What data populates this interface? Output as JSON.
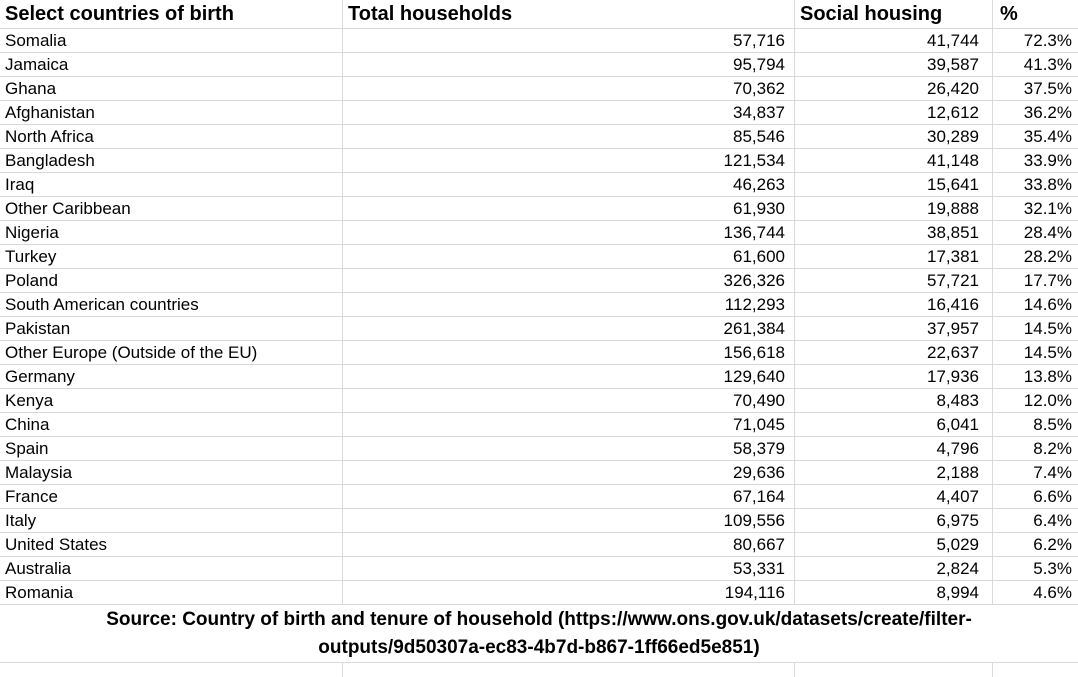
{
  "table": {
    "columns": [
      {
        "label": "Select countries of birth"
      },
      {
        "label": "Total households"
      },
      {
        "label": "Social housing"
      },
      {
        "label": "%"
      }
    ],
    "rows": [
      {
        "country": "Somalia",
        "total_households": "57,716",
        "social_housing": "41,744",
        "percent": "72.3%"
      },
      {
        "country": "Jamaica",
        "total_households": "95,794",
        "social_housing": "39,587",
        "percent": "41.3%"
      },
      {
        "country": "Ghana",
        "total_households": "70,362",
        "social_housing": "26,420",
        "percent": "37.5%"
      },
      {
        "country": "Afghanistan",
        "total_households": "34,837",
        "social_housing": "12,612",
        "percent": "36.2%"
      },
      {
        "country": "North Africa",
        "total_households": "85,546",
        "social_housing": "30,289",
        "percent": "35.4%"
      },
      {
        "country": "Bangladesh",
        "total_households": "121,534",
        "social_housing": "41,148",
        "percent": "33.9%"
      },
      {
        "country": "Iraq",
        "total_households": "46,263",
        "social_housing": "15,641",
        "percent": "33.8%"
      },
      {
        "country": "Other Caribbean",
        "total_households": "61,930",
        "social_housing": "19,888",
        "percent": "32.1%"
      },
      {
        "country": "Nigeria",
        "total_households": "136,744",
        "social_housing": "38,851",
        "percent": "28.4%"
      },
      {
        "country": "Turkey",
        "total_households": "61,600",
        "social_housing": "17,381",
        "percent": "28.2%"
      },
      {
        "country": "Poland",
        "total_households": "326,326",
        "social_housing": "57,721",
        "percent": "17.7%"
      },
      {
        "country": "South American countries",
        "total_households": "112,293",
        "social_housing": "16,416",
        "percent": "14.6%"
      },
      {
        "country": "Pakistan",
        "total_households": "261,384",
        "social_housing": "37,957",
        "percent": "14.5%"
      },
      {
        "country": "Other Europe (Outside of the EU)",
        "total_households": "156,618",
        "social_housing": "22,637",
        "percent": "14.5%"
      },
      {
        "country": "Germany",
        "total_households": "129,640",
        "social_housing": "17,936",
        "percent": "13.8%"
      },
      {
        "country": "Kenya",
        "total_households": "70,490",
        "social_housing": "8,483",
        "percent": "12.0%"
      },
      {
        "country": "China",
        "total_households": "71,045",
        "social_housing": "6,041",
        "percent": "8.5%"
      },
      {
        "country": "Spain",
        "total_households": "58,379",
        "social_housing": "4,796",
        "percent": "8.2%"
      },
      {
        "country": "Malaysia",
        "total_households": "29,636",
        "social_housing": "2,188",
        "percent": "7.4%"
      },
      {
        "country": "France",
        "total_households": "67,164",
        "social_housing": "4,407",
        "percent": "6.6%"
      },
      {
        "country": "Italy",
        "total_households": "109,556",
        "social_housing": "6,975",
        "percent": "6.4%"
      },
      {
        "country": "United States",
        "total_households": "80,667",
        "social_housing": "5,029",
        "percent": "6.2%"
      },
      {
        "country": "Australia",
        "total_households": "53,331",
        "social_housing": "2,824",
        "percent": "5.3%"
      },
      {
        "country": "Romania",
        "total_households": "194,116",
        "social_housing": "8,994",
        "percent": "4.6%"
      }
    ]
  },
  "source_note": {
    "line1": "Source: Country of birth and tenure of household (https://www.ons.gov.uk/datasets/create/filter-",
    "line2": "outputs/9d50307a-ec83-4b7d-b867-1ff66ed5e851)",
    "full_text": "Source: Country of birth and tenure of household (https://www.ons.gov.uk/datasets/create/filter-outputs/9d50307a-ec83-4b7d-b867-1ff66ed5e851)"
  },
  "colors": {
    "background": "#ffffff",
    "text": "#000000",
    "gridline": "#d9d9d9"
  }
}
